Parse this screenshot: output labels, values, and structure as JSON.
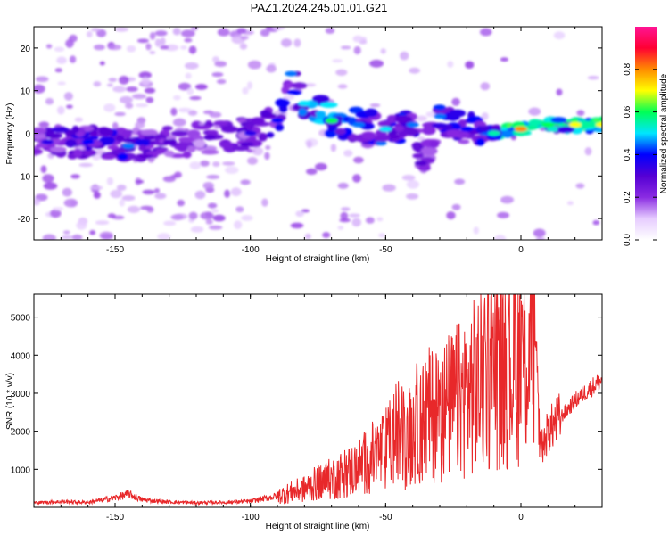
{
  "title": "PAZ1.2024.245.01.01.G21",
  "chart_data": [
    {
      "type": "heatmap",
      "xlabel": "Height of straight line (km)",
      "ylabel": "Frequency (Hz)",
      "xlim": [
        -180,
        30
      ],
      "ylim": [
        -25,
        25
      ],
      "xticks": [
        -150,
        -100,
        -50,
        0
      ],
      "yticks": [
        -20,
        -10,
        0,
        10,
        20
      ],
      "colorbar": {
        "label": "Normalized spectral amplitude",
        "range": [
          0,
          1
        ],
        "ticks": [
          0.0,
          0.2,
          0.4,
          0.6,
          0.8
        ],
        "colormap": [
          "#ffffff",
          "#e6ccff",
          "#8a2be2",
          "#5500d4",
          "#0000ff",
          "#00e5ff",
          "#00ff55",
          "#ffff00",
          "#ff8c00",
          "#ff0033",
          "#ff1493"
        ]
      },
      "ridge": [
        {
          "x": -175,
          "freq": -2,
          "amp": 0.35
        },
        {
          "x": -160,
          "freq": -2,
          "amp": 0.4
        },
        {
          "x": -145,
          "freq": -3,
          "amp": 0.45
        },
        {
          "x": -130,
          "freq": -2,
          "amp": 0.3
        },
        {
          "x": -115,
          "freq": -1,
          "amp": 0.3
        },
        {
          "x": -100,
          "freq": 0,
          "amp": 0.35
        },
        {
          "x": -90,
          "freq": 3,
          "amp": 0.4
        },
        {
          "x": -85,
          "freq": 14,
          "amp": 0.45
        },
        {
          "x": -80,
          "freq": 7,
          "amp": 0.5
        },
        {
          "x": -70,
          "freq": 3,
          "amp": 0.6
        },
        {
          "x": -60,
          "freq": 2,
          "amp": 0.45
        },
        {
          "x": -50,
          "freq": 1,
          "amp": 0.5
        },
        {
          "x": -40,
          "freq": 2,
          "amp": 0.45
        },
        {
          "x": -37,
          "freq": -7,
          "amp": 0.3
        },
        {
          "x": -30,
          "freq": 4,
          "amp": 0.45
        },
        {
          "x": -20,
          "freq": 1,
          "amp": 0.4
        },
        {
          "x": -10,
          "freq": 0,
          "amp": 0.55
        },
        {
          "x": 0,
          "freq": 1,
          "amp": 0.8
        },
        {
          "x": 10,
          "freq": 2,
          "amp": 0.6
        },
        {
          "x": 20,
          "freq": 2,
          "amp": 0.7
        },
        {
          "x": 30,
          "freq": 2,
          "amp": 0.7
        }
      ]
    },
    {
      "type": "line",
      "xlabel": "Height of straight line (km)",
      "ylabel": "SNR (10 * v/v)",
      "xlim": [
        -180,
        30
      ],
      "ylim": [
        0,
        5600
      ],
      "xticks": [
        -150,
        -100,
        -50,
        0
      ],
      "yticks": [
        1000,
        2000,
        3000,
        4000,
        5000
      ],
      "color": "#e8282a",
      "series": [
        {
          "x": [
            -180,
            -170,
            -160,
            -150,
            -145,
            -140,
            -130,
            -120,
            -110,
            -100,
            -90,
            -80,
            -75,
            -70,
            -65,
            -60,
            -55,
            -50,
            -47,
            -45,
            -42,
            -40,
            -35,
            -30,
            -25,
            -20,
            -15,
            -13,
            -10,
            -5,
            0,
            3,
            5,
            6,
            7,
            8,
            10,
            15,
            20,
            25,
            30
          ],
          "y": [
            120,
            150,
            130,
            250,
            350,
            200,
            140,
            120,
            130,
            160,
            300,
            480,
            650,
            750,
            900,
            1050,
            1300,
            1500,
            1800,
            2000,
            1700,
            2100,
            2400,
            2500,
            2700,
            3000,
            3300,
            3500,
            3700,
            3800,
            4000,
            4200,
            5000,
            3200,
            1700,
            1600,
            2000,
            2400,
            2800,
            3100,
            3350
          ]
        }
      ]
    }
  ]
}
